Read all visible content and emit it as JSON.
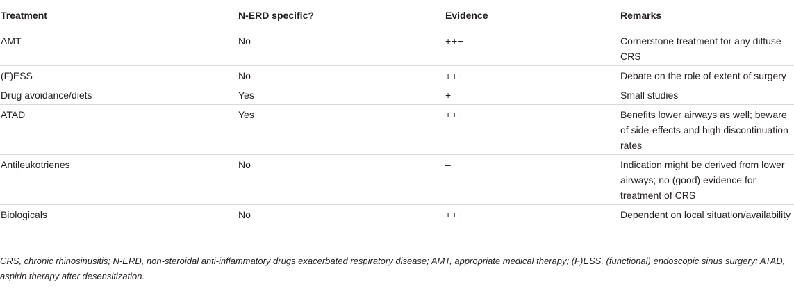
{
  "table": {
    "headers": [
      "Treatment",
      "N-ERD specific?",
      "Evidence",
      "Remarks"
    ],
    "rows": [
      {
        "treatment": "AMT",
        "specific": "No",
        "evidence": "+++",
        "remarks": "Cornerstone treatment for any diffuse CRS"
      },
      {
        "treatment": "(F)ESS",
        "specific": "No",
        "evidence": "+++",
        "remarks": "Debate on the role of extent of surgery"
      },
      {
        "treatment": "Drug avoidance/diets",
        "specific": "Yes",
        "evidence": "+",
        "remarks": "Small studies"
      },
      {
        "treatment": "ATAD",
        "specific": "Yes",
        "evidence": "+++",
        "remarks": "Benefits lower airways as well; beware of side-effects and high discontinuation rates"
      },
      {
        "treatment": "Antileukotrienes",
        "specific": "No",
        "evidence": "–",
        "remarks": "Indication might be derived from lower airways; no (good) evidence for treatment of CRS"
      },
      {
        "treatment": "Biologicals",
        "specific": "No",
        "evidence": "+++",
        "remarks": "Dependent on local situation/availability"
      }
    ]
  },
  "footnote": "CRS, chronic rhinosinusitis; N-ERD, non-steroidal anti-inflammatory drugs exacerbated respiratory disease; AMT, appropriate medical therapy; (F)ESS, (functional) endoscopic sinus surgery; ATAD, aspirin therapy after desensitization."
}
